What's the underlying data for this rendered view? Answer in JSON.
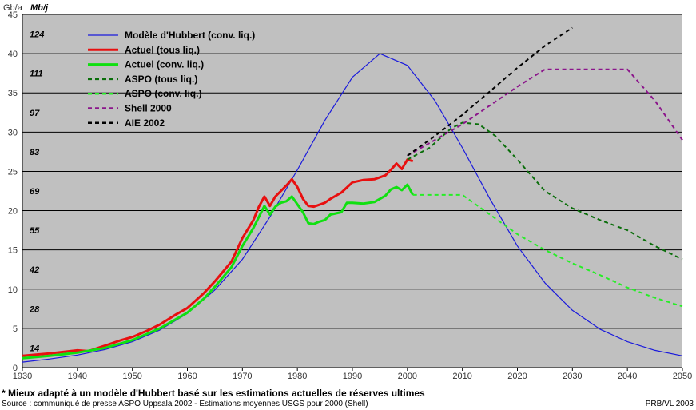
{
  "chart_data": {
    "type": "line",
    "units": {
      "left": "Gb/a",
      "right": "Mb/j"
    },
    "xlim": [
      1930,
      2050
    ],
    "ylim": [
      0,
      45
    ],
    "x_ticks": [
      "1930",
      "1940",
      "1950",
      "1960",
      "1970",
      "1980",
      "1990",
      "2000",
      "2010",
      "2020",
      "2030",
      "2040",
      "2050"
    ],
    "y_ticks": [
      "0",
      "5",
      "10",
      "15",
      "20",
      "25",
      "30",
      "35",
      "40",
      "45"
    ],
    "mbj_labels": [
      {
        "y": 2.5,
        "text": "14"
      },
      {
        "y": 7.5,
        "text": "28"
      },
      {
        "y": 12.5,
        "text": "42"
      },
      {
        "y": 17.5,
        "text": "55"
      },
      {
        "y": 22.5,
        "text": "69"
      },
      {
        "y": 27.5,
        "text": "83"
      },
      {
        "y": 32.5,
        "text": "97"
      },
      {
        "y": 37.5,
        "text": "111"
      },
      {
        "y": 42.5,
        "text": "124"
      }
    ],
    "grid": true,
    "legend_position": "top-left",
    "series": [
      {
        "name": "Modèle d'Hubbert (conv. liq.)",
        "color": "#1a1adc",
        "style": "solid",
        "width": 1.2,
        "points": [
          [
            1930,
            0.7
          ],
          [
            1935,
            1.1
          ],
          [
            1940,
            1.6
          ],
          [
            1945,
            2.3
          ],
          [
            1950,
            3.3
          ],
          [
            1955,
            4.8
          ],
          [
            1960,
            6.9
          ],
          [
            1965,
            9.9
          ],
          [
            1970,
            13.8
          ],
          [
            1975,
            19.2
          ],
          [
            1980,
            25.2
          ],
          [
            1985,
            31.5
          ],
          [
            1990,
            37
          ],
          [
            1995,
            40
          ],
          [
            2000,
            38.5
          ],
          [
            2005,
            34
          ],
          [
            2010,
            28
          ],
          [
            2015,
            21.5
          ],
          [
            2020,
            15.5
          ],
          [
            2025,
            10.8
          ],
          [
            2030,
            7.3
          ],
          [
            2035,
            4.9
          ],
          [
            2040,
            3.3
          ],
          [
            2045,
            2.2
          ],
          [
            2050,
            1.5
          ]
        ]
      },
      {
        "name": "Actuel (tous liq.)",
        "color": "#e81010",
        "style": "solid",
        "width": 3,
        "points": [
          [
            1930,
            1.5
          ],
          [
            1935,
            1.8
          ],
          [
            1940,
            2.2
          ],
          [
            1942,
            2.1
          ],
          [
            1945,
            2.8
          ],
          [
            1948,
            3.5
          ],
          [
            1950,
            3.9
          ],
          [
            1953,
            4.8
          ],
          [
            1955,
            5.5
          ],
          [
            1958,
            6.8
          ],
          [
            1960,
            7.6
          ],
          [
            1963,
            9.5
          ],
          [
            1965,
            11
          ],
          [
            1968,
            13.5
          ],
          [
            1970,
            16.5
          ],
          [
            1972,
            18.8
          ],
          [
            1973,
            20.5
          ],
          [
            1974,
            21.8
          ],
          [
            1975,
            20.6
          ],
          [
            1976,
            21.8
          ],
          [
            1977,
            22.5
          ],
          [
            1978,
            23.2
          ],
          [
            1979,
            24
          ],
          [
            1980,
            23
          ],
          [
            1981,
            21.5
          ],
          [
            1982,
            20.6
          ],
          [
            1983,
            20.5
          ],
          [
            1985,
            21
          ],
          [
            1986,
            21.5
          ],
          [
            1988,
            22.3
          ],
          [
            1990,
            23.6
          ],
          [
            1992,
            23.9
          ],
          [
            1994,
            24
          ],
          [
            1996,
            24.5
          ],
          [
            1997,
            25.2
          ],
          [
            1998,
            26
          ],
          [
            1999,
            25.3
          ],
          [
            2000,
            26.5
          ],
          [
            2001,
            26.3
          ]
        ]
      },
      {
        "name": "Actuel (conv. liq.)",
        "color": "#10e010",
        "style": "solid",
        "width": 3,
        "points": [
          [
            1930,
            1.2
          ],
          [
            1935,
            1.5
          ],
          [
            1940,
            1.9
          ],
          [
            1945,
            2.5
          ],
          [
            1950,
            3.5
          ],
          [
            1955,
            5
          ],
          [
            1960,
            7
          ],
          [
            1963,
            8.8
          ],
          [
            1965,
            10.3
          ],
          [
            1968,
            12.8
          ],
          [
            1970,
            15.5
          ],
          [
            1972,
            17.8
          ],
          [
            1973,
            19.2
          ],
          [
            1974,
            20.6
          ],
          [
            1975,
            19.5
          ],
          [
            1976,
            20.5
          ],
          [
            1977,
            21
          ],
          [
            1978,
            21.2
          ],
          [
            1979,
            21.8
          ],
          [
            1980,
            20.8
          ],
          [
            1981,
            19.8
          ],
          [
            1982,
            18.4
          ],
          [
            1983,
            18.3
          ],
          [
            1984,
            18.6
          ],
          [
            1985,
            18.8
          ],
          [
            1986,
            19.5
          ],
          [
            1988,
            19.8
          ],
          [
            1989,
            21
          ],
          [
            1990,
            21
          ],
          [
            1992,
            20.9
          ],
          [
            1994,
            21.1
          ],
          [
            1996,
            21.9
          ],
          [
            1997,
            22.7
          ],
          [
            1998,
            23
          ],
          [
            1999,
            22.6
          ],
          [
            2000,
            23.3
          ],
          [
            2001,
            22
          ]
        ]
      },
      {
        "name": "ASPO (tous liq.)",
        "color": "#0a6e0a",
        "style": "dashed",
        "width": 2,
        "points": [
          [
            2000,
            26.5
          ],
          [
            2004,
            28
          ],
          [
            2008,
            30.5
          ],
          [
            2010,
            31.2
          ],
          [
            2013,
            31
          ],
          [
            2016,
            29.5
          ],
          [
            2020,
            26.5
          ],
          [
            2025,
            22.5
          ],
          [
            2030,
            20.3
          ],
          [
            2035,
            18.8
          ],
          [
            2040,
            17.5
          ],
          [
            2045,
            15.5
          ],
          [
            2050,
            13.8
          ]
        ]
      },
      {
        "name": "ASPO (conv. liq.)",
        "color": "#26ee26",
        "style": "dashed",
        "width": 2,
        "points": [
          [
            2001,
            22
          ],
          [
            2010,
            22
          ],
          [
            2015,
            19.5
          ],
          [
            2020,
            17
          ],
          [
            2025,
            15
          ],
          [
            2030,
            13.3
          ],
          [
            2035,
            11.8
          ],
          [
            2040,
            10.2
          ],
          [
            2045,
            8.9
          ],
          [
            2050,
            7.8
          ]
        ]
      },
      {
        "name": "Shell 2000",
        "color": "#8b158b",
        "style": "dashed",
        "width": 2,
        "points": [
          [
            2000,
            27
          ],
          [
            2010,
            31
          ],
          [
            2020,
            35.8
          ],
          [
            2025,
            38
          ],
          [
            2030,
            38
          ],
          [
            2035,
            38
          ],
          [
            2040,
            38
          ],
          [
            2045,
            34
          ],
          [
            2050,
            29
          ]
        ]
      },
      {
        "name": "AIE 2002",
        "color": "#000000",
        "style": "dashed",
        "width": 2,
        "points": [
          [
            2000,
            27
          ],
          [
            2005,
            29.5
          ],
          [
            2010,
            32.2
          ],
          [
            2015,
            35.2
          ],
          [
            2020,
            38.2
          ],
          [
            2025,
            41
          ],
          [
            2030,
            43.3
          ]
        ]
      }
    ]
  },
  "footnote": "* Mieux adapté à un modèle d'Hubbert basé sur les estimations actuelles de réserves ultimes",
  "source": "Source : communiqué de presse ASPO Uppsala 2002 - Estimations moyennes USGS pour 2000 (Shell)",
  "credit": "PRB/VL 2003"
}
